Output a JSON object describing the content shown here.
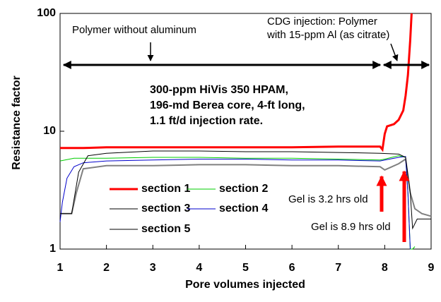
{
  "chart_data": {
    "type": "line",
    "xlabel": "Pore volumes injected",
    "ylabel": "Resistance factor",
    "xlim": [
      1,
      9
    ],
    "xticks": [
      1,
      2,
      3,
      4,
      5,
      6,
      7,
      8,
      9
    ],
    "ylim": [
      1,
      100
    ],
    "yticks": [
      1,
      10,
      100
    ],
    "ylog": true,
    "annotations": [
      "Polymer without aluminum",
      "CDG injection: Polymer",
      "with 15-ppm Al (as citrate)",
      "300-ppm HiVis 350 HPAM,",
      "196-md Berea core, 4-ft long,",
      "1.1 ft/d injection rate.",
      "Gel is 3.2 hrs old",
      "Gel is 8.9 hrs old"
    ],
    "series": [
      {
        "name": "section 1",
        "color": "#ff0000",
        "width": 3,
        "x": [
          1,
          1.5,
          2,
          3,
          4,
          5,
          6,
          7,
          7.9,
          7.95,
          8.0,
          8.05,
          8.2,
          8.3,
          8.4,
          8.45,
          8.5,
          8.55,
          8.58
        ],
        "values": [
          7.2,
          7.2,
          7.3,
          7.3,
          7.3,
          7.3,
          7.3,
          7.4,
          7.4,
          7.0,
          9.5,
          11,
          11.5,
          12.5,
          15,
          20,
          30,
          60,
          100
        ]
      },
      {
        "name": "section 2",
        "color": "#00cc00",
        "width": 1,
        "x": [
          1,
          1.3,
          2,
          3,
          4,
          5,
          6,
          7,
          7.9,
          8.0,
          8.3,
          8.45,
          8.5,
          8.55,
          8.6,
          8.65
        ],
        "values": [
          5.6,
          5.9,
          5.9,
          6.0,
          6.0,
          5.9,
          5.9,
          5.8,
          5.7,
          5.8,
          6.2,
          6.0,
          3,
          1,
          1,
          1.05
        ]
      },
      {
        "name": "section 3",
        "color": "#808080",
        "width": 2,
        "x": [
          1,
          1.25,
          1.35,
          1.5,
          2,
          3,
          4,
          5,
          6,
          7,
          7.9,
          8.0,
          8.3,
          8.45,
          8.55,
          8.65,
          8.8,
          9
        ],
        "values": [
          2,
          2,
          3,
          4.8,
          5.1,
          5.1,
          5.2,
          5.2,
          5.1,
          5.1,
          5.0,
          4.7,
          5.3,
          5.8,
          3,
          2.2,
          2.0,
          1.9
        ]
      },
      {
        "name": "section 4",
        "color": "#0000cc",
        "width": 1,
        "x": [
          1,
          1.05,
          1.15,
          1.3,
          1.5,
          2,
          3,
          4,
          5,
          6,
          7,
          7.9,
          8.3,
          8.45,
          8.5,
          8.55
        ],
        "values": [
          1.7,
          2.5,
          4,
          5,
          5.4,
          5.6,
          5.7,
          5.8,
          5.8,
          5.7,
          5.7,
          5.6,
          6.0,
          6.1,
          3,
          1
        ]
      },
      {
        "name": "section 5",
        "color": "#000000",
        "width": 1,
        "x": [
          1,
          1.25,
          1.4,
          1.6,
          2,
          3,
          4,
          5,
          6,
          7,
          7.9,
          8.3,
          8.45,
          8.55,
          8.6,
          8.7,
          8.9,
          9
        ],
        "values": [
          2,
          2,
          4.5,
          6.2,
          6.5,
          6.8,
          6.8,
          6.7,
          6.7,
          6.6,
          6.5,
          6.4,
          6.0,
          3,
          1.5,
          1.8,
          1.8,
          1.8
        ]
      }
    ]
  }
}
